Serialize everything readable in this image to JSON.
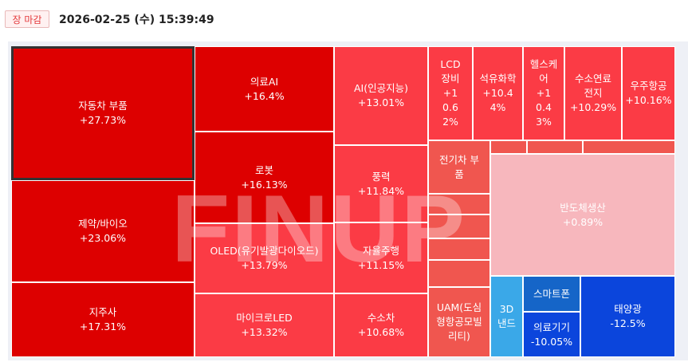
{
  "header": {
    "status_badge": "장 마감",
    "timestamp": "2026-02-25 (수) 15:39:49"
  },
  "watermark": "FINUP",
  "colors": {
    "up_strong": "#dd0000",
    "up_mid": "#fb3b45",
    "up_light": "#f0564f",
    "up_pale": "#f7b7bd",
    "down_strong": "#0b45dc",
    "down_mid": "#1565c8",
    "down_light": "#3aa8e8"
  },
  "tiles": [
    {
      "name": "자동차 부품",
      "change": "+27.73%"
    },
    {
      "name": "제약/바이오",
      "change": "+23.06%"
    },
    {
      "name": "지주사",
      "change": "+17.31%"
    },
    {
      "name": "의료AI",
      "change": "+16.4%"
    },
    {
      "name": "로봇",
      "change": "+16.13%"
    },
    {
      "name": "OLED(유기발광다이오드)",
      "change": "+13.79%"
    },
    {
      "name": "마이크로LED",
      "change": "+13.32%"
    },
    {
      "name": "AI(인공지능)",
      "change": "+13.01%"
    },
    {
      "name": "풍력",
      "change": "+11.84%"
    },
    {
      "name": "자율주행",
      "change": "+11.15%"
    },
    {
      "name": "수소차",
      "change": "+10.68%"
    },
    {
      "name": "LCD 장비",
      "change": "+10.62%"
    },
    {
      "name": "석유화학",
      "change": "+10.44%"
    },
    {
      "name": "헬스케어",
      "change": "+10.43%"
    },
    {
      "name": "수소연료전지",
      "change": "+10.29%"
    },
    {
      "name": "우주항공",
      "change": "+10.16%"
    },
    {
      "name": "전기차 부품",
      "change": ""
    },
    {
      "name": "반도체생산",
      "change": "+0.89%"
    },
    {
      "name": "UAM(도심형항공모빌리티)",
      "change": ""
    },
    {
      "name": "3D 낸드",
      "change": ""
    },
    {
      "name": "스마트폰",
      "change": ""
    },
    {
      "name": "의료기기",
      "change": "-10.05%"
    },
    {
      "name": "태양광",
      "change": "-12.5%"
    }
  ]
}
